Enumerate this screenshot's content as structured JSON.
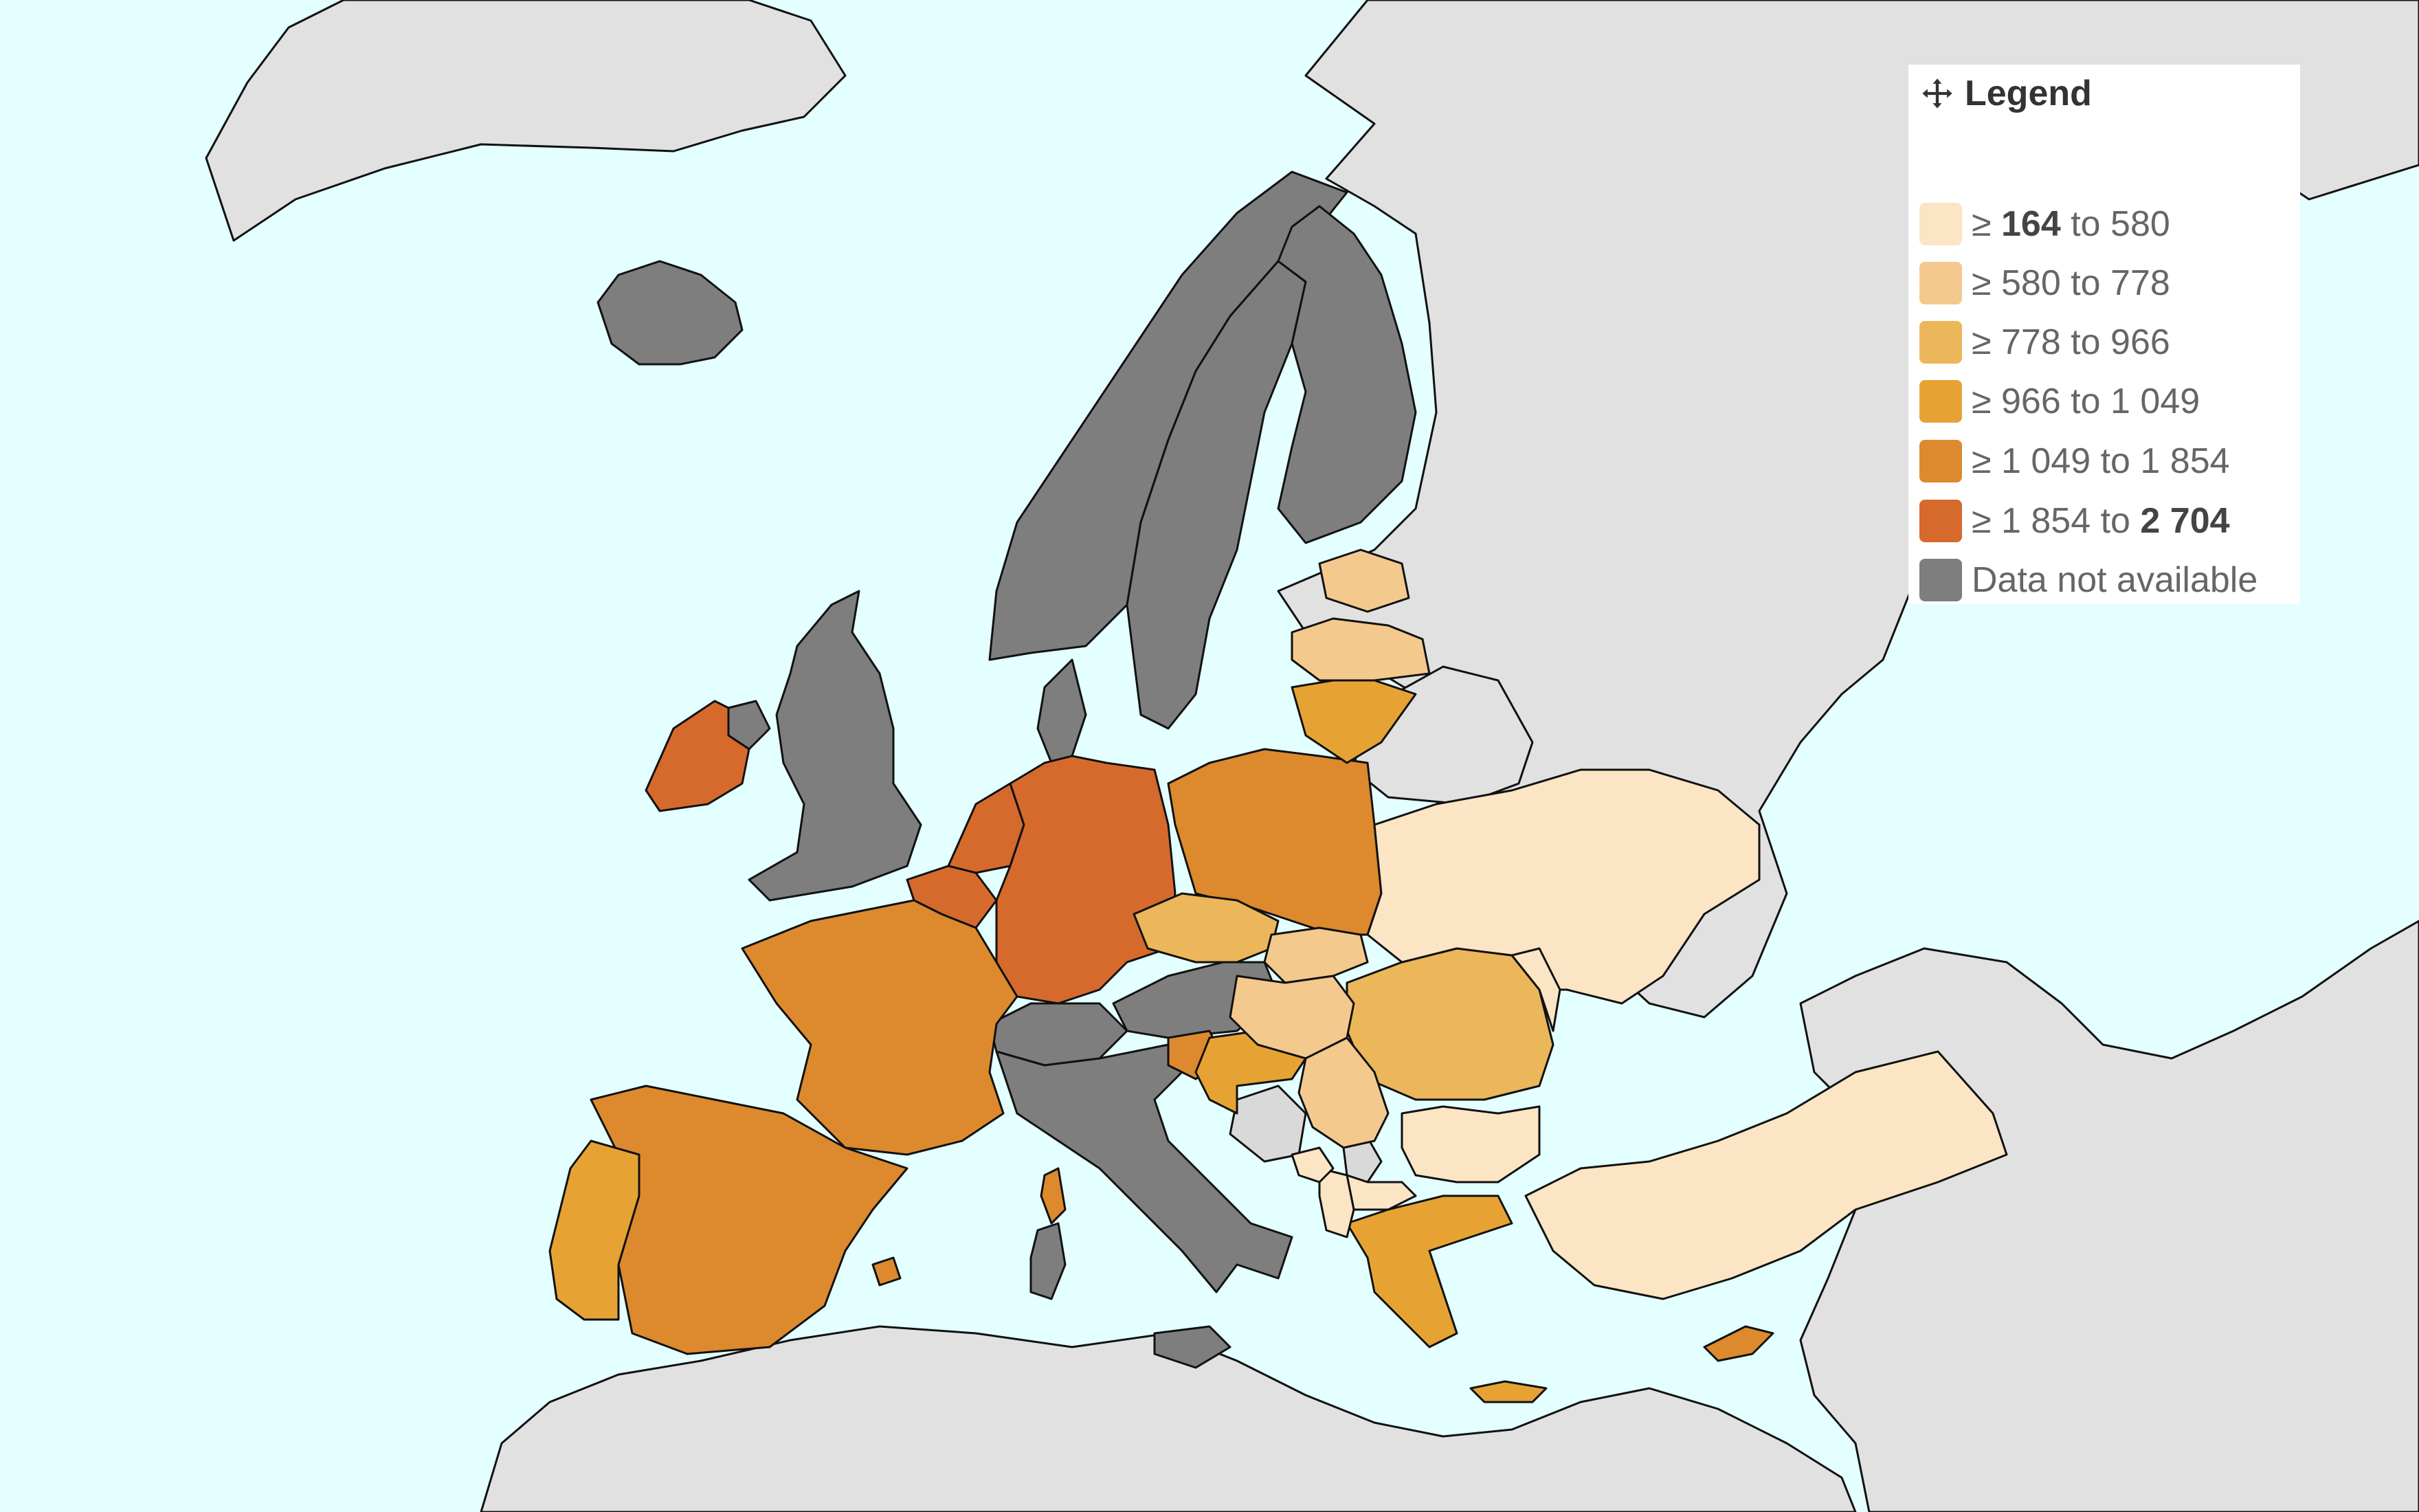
{
  "legend": {
    "title": "Legend",
    "items": [
      {
        "prefix": "≥ ",
        "low": "164",
        "low_bold": true,
        "mid": " to ",
        "high": "580",
        "high_bold": false,
        "color": "#fbe5c4"
      },
      {
        "prefix": "≥ ",
        "low": "580",
        "low_bold": false,
        "mid": " to ",
        "high": "778",
        "high_bold": false,
        "color": "#f3c98e"
      },
      {
        "prefix": "≥ ",
        "low": "778",
        "low_bold": false,
        "mid": " to ",
        "high": "966",
        "high_bold": false,
        "color": "#ecb65a"
      },
      {
        "prefix": "≥ ",
        "low": "966",
        "low_bold": false,
        "mid": " to ",
        "high": "1 049",
        "high_bold": false,
        "color": "#e6a334"
      },
      {
        "prefix": "≥ ",
        "low": "1 049",
        "low_bold": false,
        "mid": " to ",
        "high": "1 854",
        "high_bold": false,
        "color": "#dd892d"
      },
      {
        "prefix": "≥ ",
        "low": "1 854",
        "low_bold": false,
        "mid": " to ",
        "high": "2 704",
        "high_bold": true,
        "color": "#d66a2d"
      },
      {
        "label": "Data not available",
        "color": "#7e7e7e"
      }
    ]
  },
  "map_colors": {
    "sea": "#e3ffff",
    "land_outside": "#e1e1e1",
    "no_data": "#7e7e7e",
    "no_data_light": "#d9d9d9"
  },
  "regions": [
    {
      "name": "Greenland",
      "class": "land_outside"
    },
    {
      "name": "Russia",
      "class": "land_outside"
    },
    {
      "name": "Belarus",
      "class": "land_outside"
    },
    {
      "name": "North Africa",
      "class": "land_outside"
    },
    {
      "name": "Middle East",
      "class": "land_outside"
    },
    {
      "name": "Iceland",
      "class": "no_data"
    },
    {
      "name": "Norway",
      "class": "no_data"
    },
    {
      "name": "Sweden",
      "class": "no_data"
    },
    {
      "name": "Finland",
      "class": "no_data"
    },
    {
      "name": "United Kingdom",
      "class": "no_data"
    },
    {
      "name": "Northern Ireland",
      "class": "no_data"
    },
    {
      "name": "Denmark",
      "class": "no_data"
    },
    {
      "name": "Switzerland",
      "class": "no_data"
    },
    {
      "name": "Austria",
      "class": "no_data"
    },
    {
      "name": "Italy",
      "class": "no_data"
    },
    {
      "name": "Sardinia",
      "class": "no_data"
    },
    {
      "name": "Sicily",
      "class": "no_data"
    },
    {
      "name": "Bosnia and Herzegovina",
      "class": "no_data_light"
    },
    {
      "name": "Kosovo",
      "class": "no_data_light"
    },
    {
      "name": "Ireland",
      "bin": 5
    },
    {
      "name": "Netherlands",
      "bin": 5
    },
    {
      "name": "Belgium",
      "bin": 5
    },
    {
      "name": "Germany",
      "bin": 5
    },
    {
      "name": "France",
      "bin": 4
    },
    {
      "name": "Corsica",
      "bin": 4
    },
    {
      "name": "Spain",
      "bin": 4
    },
    {
      "name": "Balearic Islands",
      "bin": 4
    },
    {
      "name": "Poland",
      "bin": 4
    },
    {
      "name": "Slovenia",
      "bin": 4
    },
    {
      "name": "Cyprus",
      "bin": 4
    },
    {
      "name": "Portugal",
      "bin": 3
    },
    {
      "name": "Lithuania",
      "bin": 3
    },
    {
      "name": "Croatia",
      "bin": 3
    },
    {
      "name": "Greece",
      "bin": 3
    },
    {
      "name": "Crete",
      "bin": 3
    },
    {
      "name": "Czechia",
      "bin": 2
    },
    {
      "name": "Romania",
      "bin": 2
    },
    {
      "name": "Estonia",
      "bin": 1
    },
    {
      "name": "Latvia",
      "bin": 1
    },
    {
      "name": "Slovakia",
      "bin": 1
    },
    {
      "name": "Hungary",
      "bin": 1
    },
    {
      "name": "Serbia",
      "bin": 1
    },
    {
      "name": "Ukraine",
      "bin": 0
    },
    {
      "name": "Moldova",
      "bin": 0
    },
    {
      "name": "Bulgaria",
      "bin": 0
    },
    {
      "name": "Turkey",
      "bin": 0
    },
    {
      "name": "North Macedonia",
      "bin": 0
    },
    {
      "name": "Albania",
      "bin": 0
    },
    {
      "name": "Montenegro",
      "bin": 0
    }
  ]
}
